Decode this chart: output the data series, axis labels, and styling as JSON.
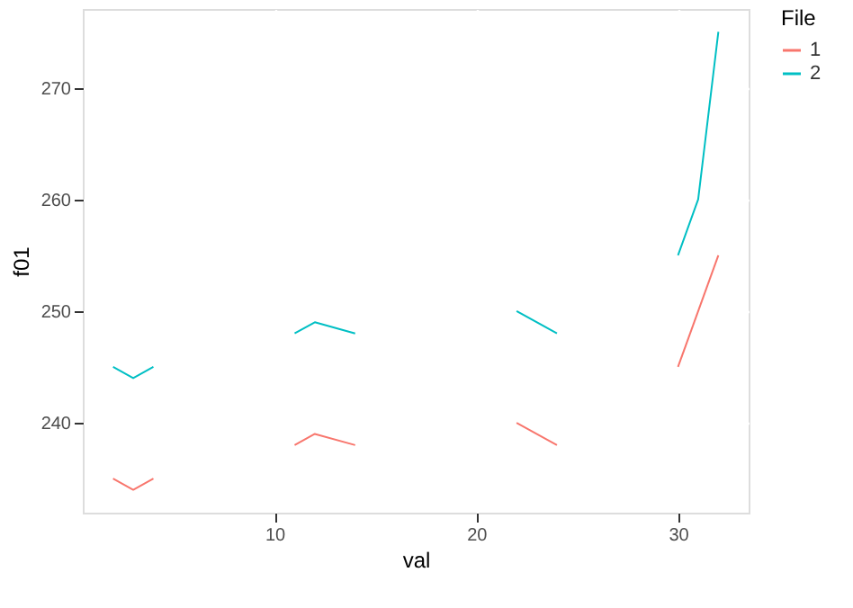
{
  "chart_data": {
    "type": "line",
    "xlabel": "val",
    "ylabel": "f01",
    "legend_title": "File",
    "legend": "right",
    "grid": true,
    "line_style": "solid",
    "marker": "none",
    "xlim": [
      0.5,
      33.5
    ],
    "xticks": [
      10,
      20,
      30
    ],
    "ylim": [
      231.95,
      277.05
    ],
    "yticks": [
      240,
      250,
      260,
      270
    ],
    "series": [
      {
        "name": "1",
        "color": "#f8766d",
        "x": [
          2,
          3,
          4,
          null,
          11,
          12,
          14,
          null,
          22,
          24,
          null,
          30,
          32
        ],
        "values": [
          235,
          234,
          235,
          null,
          238,
          239,
          238,
          null,
          240,
          238,
          null,
          245,
          255
        ]
      },
      {
        "name": "2",
        "color": "#00bfc4",
        "x": [
          2,
          3,
          4,
          null,
          11,
          12,
          14,
          null,
          22,
          24,
          null,
          30,
          31,
          32
        ],
        "values": [
          245,
          244,
          245,
          null,
          248,
          249,
          248,
          null,
          250,
          248,
          null,
          255,
          260,
          275
        ]
      }
    ]
  }
}
